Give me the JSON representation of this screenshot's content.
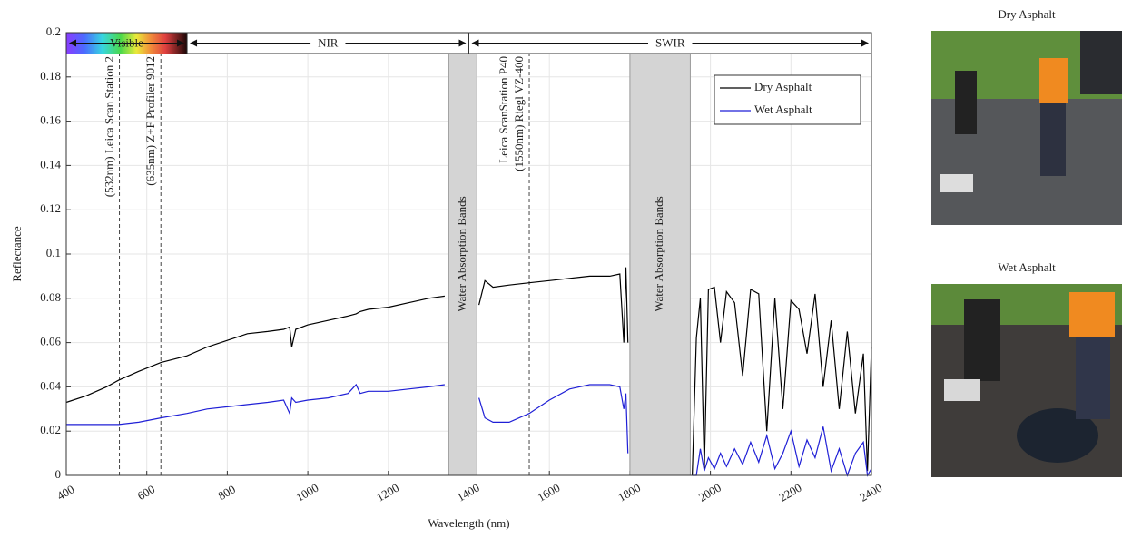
{
  "chart_data": {
    "type": "line",
    "xlabel": "Wavelength (nm)",
    "ylabel": "Reflectance",
    "xlim": [
      400,
      2400
    ],
    "ylim": [
      0,
      0.2
    ],
    "xticks": [
      400,
      600,
      800,
      1000,
      1200,
      1400,
      1600,
      1800,
      2000,
      2200,
      2400
    ],
    "yticks": [
      0,
      0.02,
      0.04,
      0.06,
      0.08,
      0.1,
      0.12,
      0.14,
      0.16,
      0.18,
      0.2
    ],
    "grid": true,
    "legend": "upper right",
    "x": [
      400,
      450,
      500,
      530,
      580,
      635,
      700,
      750,
      800,
      850,
      900,
      940,
      955,
      960,
      970,
      1000,
      1050,
      1100,
      1120,
      1130,
      1150,
      1200,
      1250,
      1300,
      1340,
      1350,
      1425,
      1440,
      1460,
      1500,
      1550,
      1600,
      1650,
      1700,
      1750,
      1775,
      1785,
      1790,
      1795,
      1800,
      1955,
      1965,
      1975,
      1985,
      1995,
      2010,
      2025,
      2040,
      2060,
      2080,
      2100,
      2120,
      2140,
      2160,
      2180,
      2200,
      2220,
      2240,
      2260,
      2280,
      2300,
      2320,
      2340,
      2360,
      2380,
      2390,
      2400
    ],
    "series": [
      {
        "name": "Dry Asphalt",
        "color": "#000000",
        "values": [
          0.033,
          0.036,
          0.04,
          0.043,
          0.047,
          0.051,
          0.054,
          0.058,
          0.061,
          0.064,
          0.065,
          0.066,
          0.067,
          0.058,
          0.066,
          0.068,
          0.07,
          0.072,
          0.073,
          0.074,
          0.075,
          0.076,
          0.078,
          0.08,
          0.081,
          null,
          0.077,
          0.088,
          0.085,
          0.086,
          0.087,
          0.088,
          0.089,
          0.09,
          0.09,
          0.091,
          0.06,
          0.094,
          0.06,
          null,
          0,
          0.062,
          0.08,
          0.003,
          0.084,
          0.085,
          0.06,
          0.083,
          0.078,
          0.045,
          0.084,
          0.082,
          0.02,
          0.08,
          0.03,
          0.079,
          0.075,
          0.055,
          0.082,
          0.04,
          0.07,
          0.03,
          0.065,
          0.028,
          0.055,
          0.002,
          0.058
        ]
      },
      {
        "name": "Wet Asphalt",
        "color": "#1f1fd6",
        "values": [
          0.023,
          0.023,
          0.023,
          0.023,
          0.024,
          0.026,
          0.028,
          0.03,
          0.031,
          0.032,
          0.033,
          0.034,
          0.028,
          0.035,
          0.033,
          0.034,
          0.035,
          0.037,
          0.041,
          0.037,
          0.038,
          0.038,
          0.039,
          0.04,
          0.041,
          null,
          0.035,
          0.026,
          0.024,
          0.024,
          0.028,
          0.034,
          0.039,
          0.041,
          0.041,
          0.04,
          0.03,
          0.037,
          0.01,
          null,
          0,
          0,
          0.012,
          0.002,
          0.008,
          0.003,
          0.01,
          0.004,
          0.012,
          0.005,
          0.015,
          0.006,
          0.018,
          0.003,
          0.01,
          0.02,
          0.004,
          0.016,
          0.008,
          0.022,
          0.002,
          0.012,
          0,
          0.01,
          0.015,
          0,
          0.003
        ]
      }
    ],
    "regions": [
      {
        "x0": 400,
        "x1": 700,
        "label": "Visible"
      },
      {
        "x0": 700,
        "x1": 1400,
        "label": "NIR"
      },
      {
        "x0": 1400,
        "x1": 2400,
        "label": "SWIR"
      }
    ],
    "bands": [
      {
        "x0": 1350,
        "x1": 1420,
        "label": "Water Absorption Bands"
      },
      {
        "x0": 1800,
        "x1": 1950,
        "label": "Water Absorption Bands"
      }
    ],
    "markers": [
      {
        "x": 532,
        "lines": [
          "(532nm) Leica Scan Station 2"
        ]
      },
      {
        "x": 635,
        "lines": [
          "(635nm) Z+F Profiler 9012"
        ]
      },
      {
        "x": 1550,
        "lines": [
          "Leica ScanStation P40",
          "(1550nm) Riegl VZ-400"
        ]
      }
    ]
  },
  "photos": [
    {
      "title": "Dry Asphalt"
    },
    {
      "title": "Wet Asphalt"
    }
  ]
}
